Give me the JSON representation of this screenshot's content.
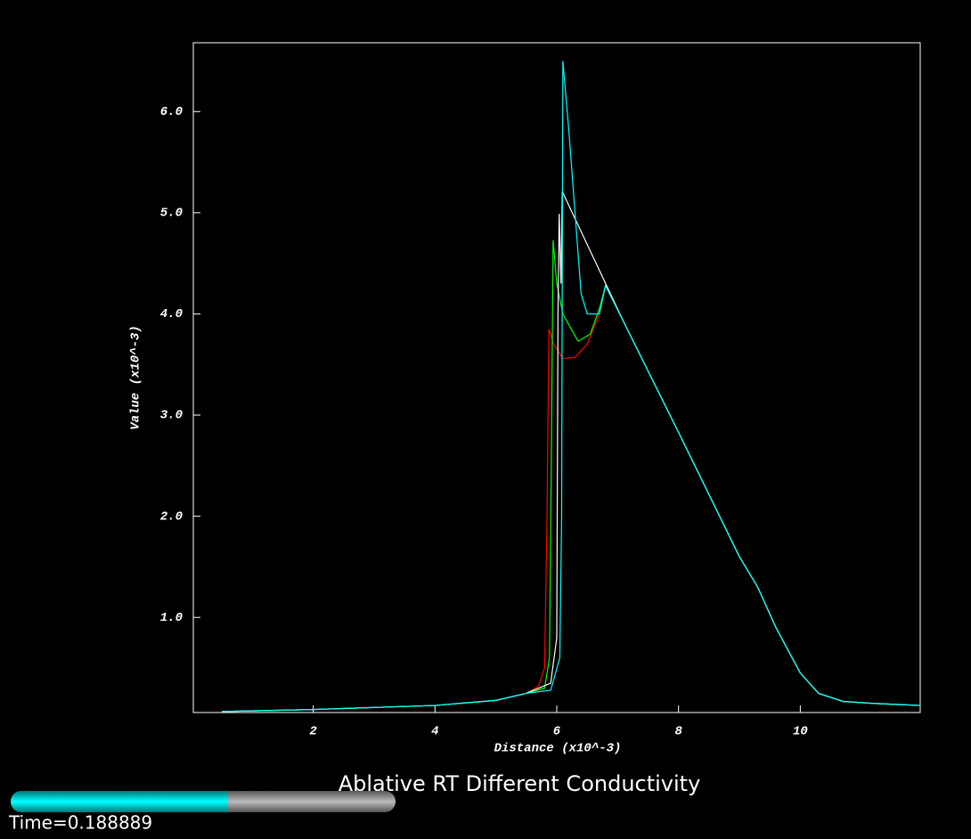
{
  "chart_data": {
    "type": "line",
    "title": "Ablative RT Different Conductivity",
    "time_label": "Time=0.188889",
    "x_label": "Distance (x10^-3)",
    "y_label": "Value (x10^-3)",
    "xlim": [
      0.03,
      11.97
    ],
    "ylim": [
      0.06,
      6.68
    ],
    "xticks": [
      2,
      4,
      6,
      8,
      10
    ],
    "yticks": [
      {
        "value": 1,
        "label": "1.0"
      },
      {
        "value": 2,
        "label": "2.0"
      },
      {
        "value": 3,
        "label": "3.0"
      },
      {
        "value": 4,
        "label": "4.0"
      },
      {
        "value": 5,
        "label": "5.0"
      },
      {
        "value": 6,
        "label": "6.0"
      }
    ],
    "series": [
      {
        "color": "#ff0000",
        "x": [
          0.5,
          2,
          4,
          5,
          5.5,
          5.7,
          5.8,
          5.84,
          5.87,
          5.95,
          6.1,
          6.3,
          6.5,
          6.7,
          6.8,
          7.0,
          8,
          9,
          9.3,
          9.6,
          10,
          10.3,
          10.7,
          11.2,
          11.97
        ],
        "values": [
          0.07,
          0.09,
          0.13,
          0.18,
          0.25,
          0.32,
          0.5,
          2.0,
          3.85,
          3.7,
          3.56,
          3.57,
          3.7,
          4.0,
          4.28,
          4.04,
          2.83,
          1.6,
          1.3,
          0.9,
          0.45,
          0.25,
          0.17,
          0.15,
          0.13
        ]
      },
      {
        "color": "#00ff00",
        "x": [
          0.5,
          2,
          4,
          5,
          5.5,
          5.8,
          5.88,
          5.91,
          5.94,
          6.0,
          6.1,
          6.35,
          6.55,
          6.7,
          6.8,
          7.0,
          8,
          9,
          9.3,
          9.6,
          10,
          10.3,
          10.7,
          11.2,
          11.97
        ],
        "values": [
          0.07,
          0.09,
          0.13,
          0.18,
          0.25,
          0.3,
          0.6,
          2.5,
          4.73,
          4.3,
          4.0,
          3.73,
          3.8,
          4.05,
          4.28,
          4.04,
          2.83,
          1.6,
          1.3,
          0.9,
          0.45,
          0.25,
          0.17,
          0.15,
          0.13
        ]
      },
      {
        "color": "#ffffff",
        "x": [
          0.5,
          2,
          4,
          5,
          5.5,
          5.9,
          6.0,
          6.02,
          6.04,
          6.07,
          6.09,
          7.1,
          8,
          9,
          9.3,
          9.6,
          10,
          10.3,
          10.7,
          11.2,
          11.97
        ],
        "values": [
          0.07,
          0.09,
          0.13,
          0.18,
          0.25,
          0.35,
          0.8,
          4.0,
          4.99,
          4.3,
          5.21,
          3.92,
          2.83,
          1.6,
          1.3,
          0.9,
          0.45,
          0.25,
          0.17,
          0.15,
          0.13
        ]
      },
      {
        "color": "#00ffff",
        "x": [
          0.5,
          2,
          4,
          5,
          5.5,
          5.9,
          6.05,
          6.08,
          6.1,
          6.2,
          6.3,
          6.4,
          6.5,
          6.7,
          6.8,
          7.0,
          8,
          9,
          9.3,
          9.6,
          10,
          10.3,
          10.7,
          11.2,
          11.97
        ],
        "values": [
          0.07,
          0.09,
          0.13,
          0.18,
          0.25,
          0.28,
          0.6,
          2.0,
          6.5,
          5.8,
          5.0,
          4.2,
          4.0,
          4.0,
          4.28,
          4.04,
          2.83,
          1.6,
          1.3,
          0.9,
          0.45,
          0.25,
          0.17,
          0.15,
          0.13
        ]
      }
    ]
  }
}
